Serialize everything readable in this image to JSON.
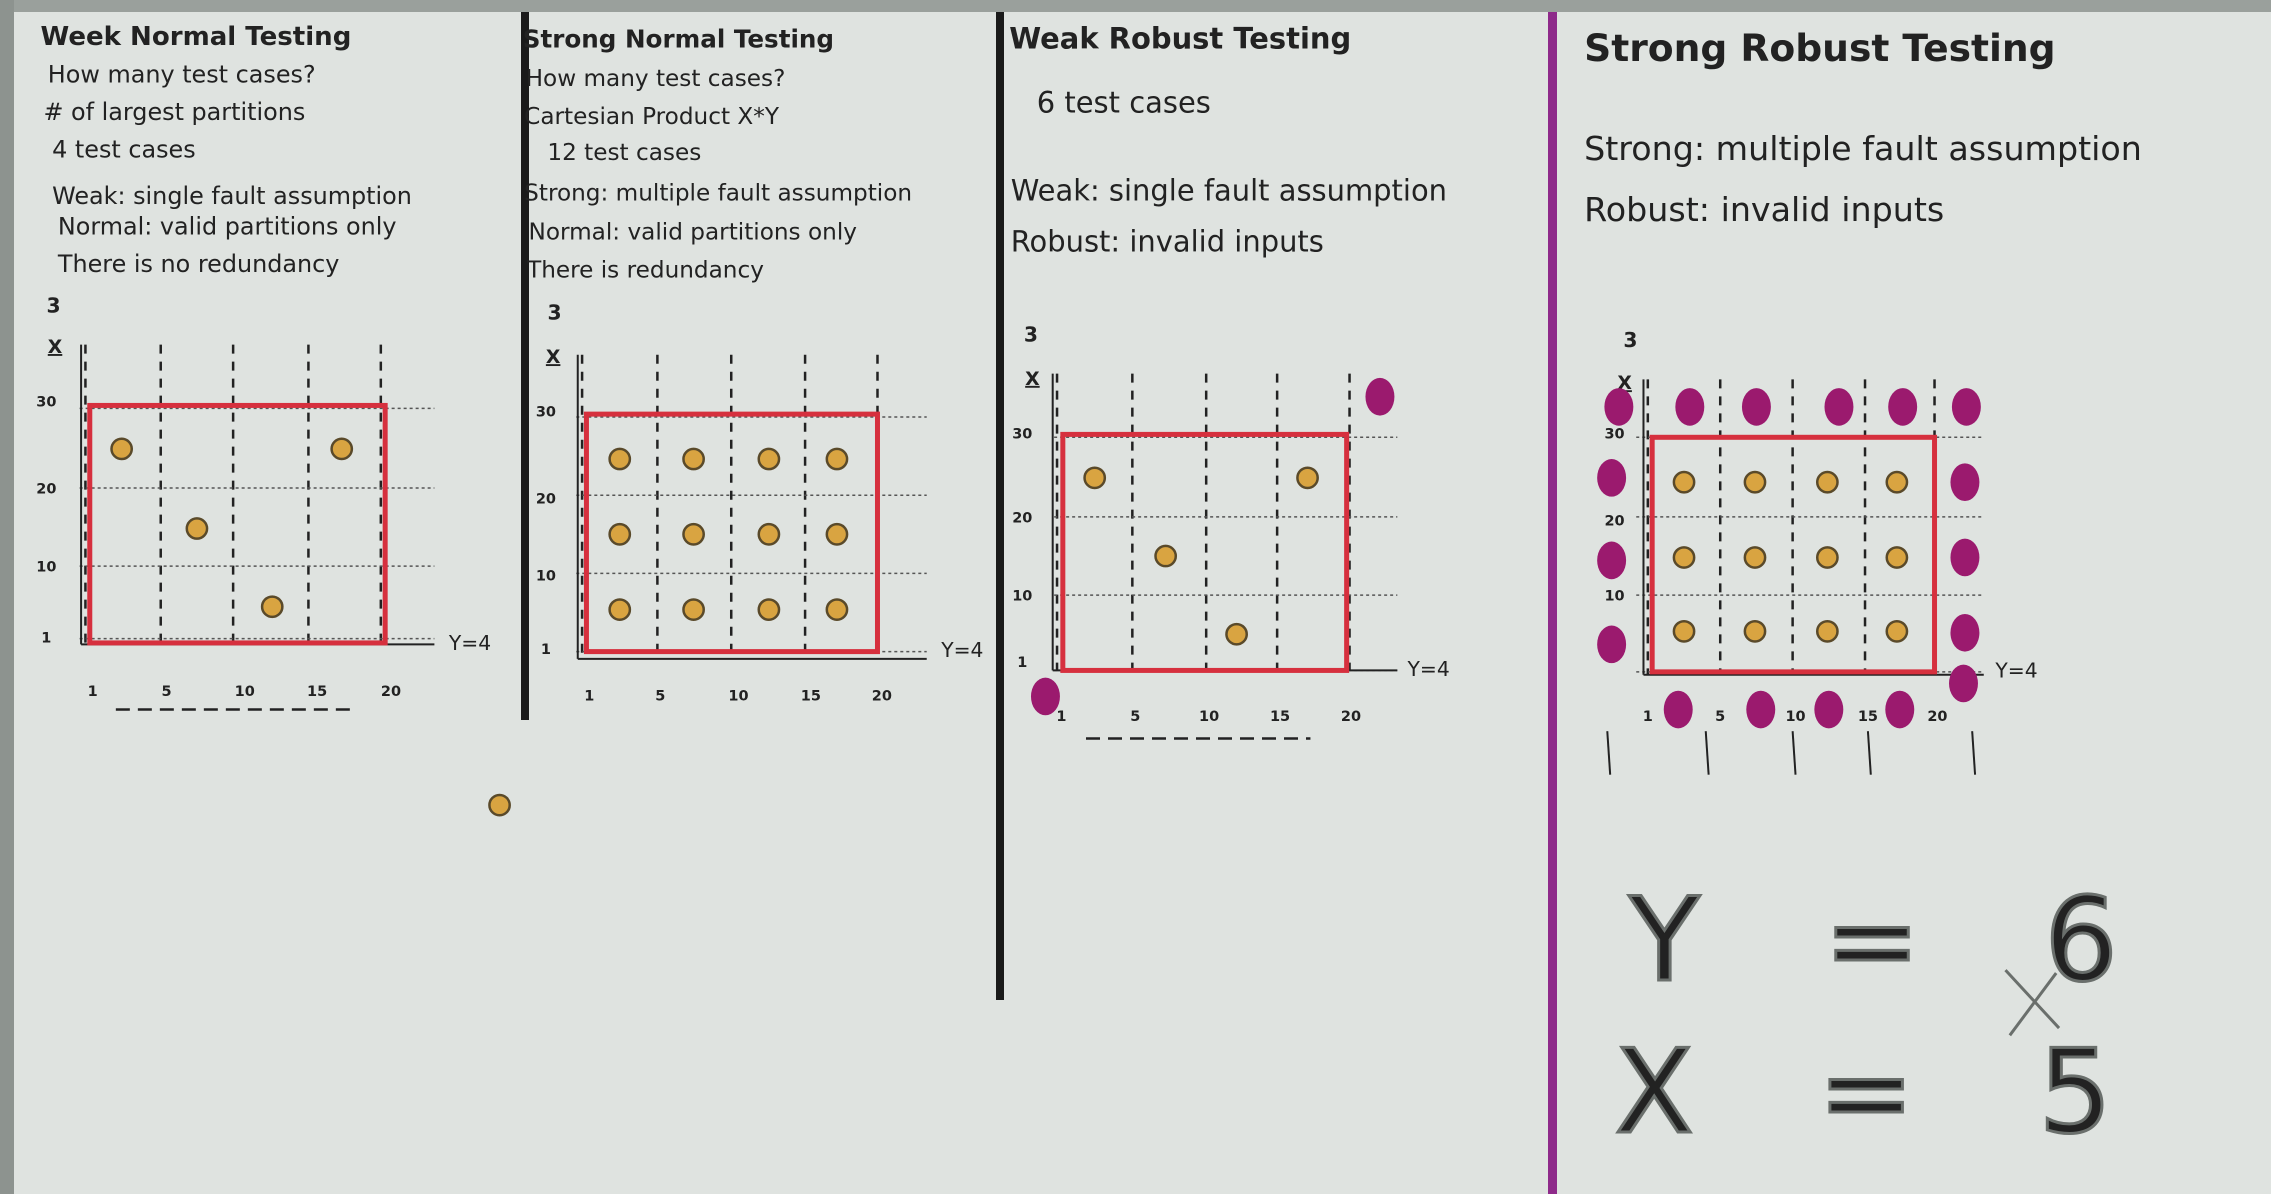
{
  "panels": [
    {
      "title": "Week Normal Testing",
      "lines": [
        "How many test cases?",
        "# of largest partitions",
        "4 test cases",
        "Weak: single fault assumption",
        "Normal: valid partitions only",
        "There is no redundancy"
      ],
      "diagram": {
        "label": "3",
        "vertical_axis_label": "X",
        "horizontal_axis_label": "Y=4",
        "x_ticks": [
          "1",
          "5",
          "10",
          "15",
          "20"
        ],
        "y_ticks": [
          "30",
          "20",
          "10",
          "1"
        ]
      }
    },
    {
      "title": "Strong Normal Testing",
      "lines": [
        "How many test cases?",
        "Cartesian Product X*Y",
        "12 test cases",
        "Strong: multiple fault assumption",
        "Normal: valid partitions only",
        "There is redundancy"
      ],
      "diagram": {
        "label": "3",
        "vertical_axis_label": "X",
        "horizontal_axis_label": "Y=4",
        "x_ticks": [
          "1",
          "5",
          "10",
          "15",
          "20"
        ],
        "y_ticks": [
          "30",
          "20",
          "10",
          "1"
        ]
      }
    },
    {
      "title": "Weak Robust Testing",
      "lines": [
        "6 test cases",
        "Weak: single fault assumption",
        "Robust: invalid inputs"
      ],
      "diagram": {
        "label": "3",
        "vertical_axis_label": "X",
        "horizontal_axis_label": "Y=4",
        "x_ticks": [
          "1",
          "5",
          "10",
          "15",
          "20"
        ],
        "y_ticks": [
          "30",
          "20",
          "10",
          "1"
        ]
      }
    },
    {
      "title": "Strong Robust Testing",
      "lines": [
        "Strong: multiple fault assumption",
        "Robust: invalid inputs"
      ],
      "diagram": {
        "label": "3",
        "vertical_axis_label": "X",
        "horizontal_axis_label": "Y=4",
        "x_ticks": [
          "1",
          "5",
          "10",
          "15",
          "20"
        ],
        "y_ticks": [
          "30",
          "20",
          "10"
        ]
      }
    }
  ],
  "notes": [
    "Y = 6",
    "X = 5"
  ]
}
